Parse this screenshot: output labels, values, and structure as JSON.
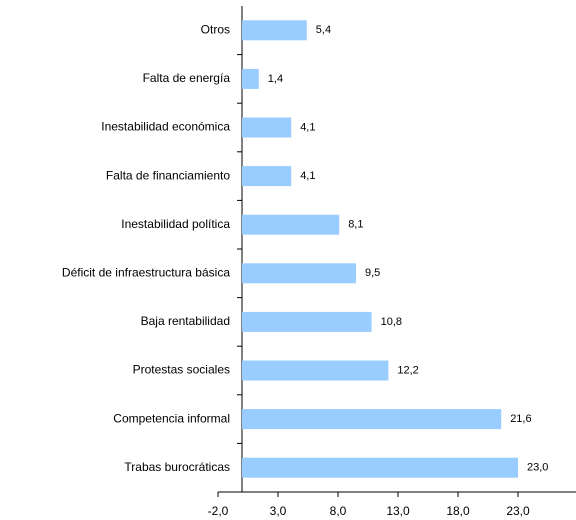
{
  "chart_data": {
    "type": "barh",
    "categories": [
      "Otros",
      "Falta de energía",
      "Inestabilidad económica",
      "Falta de financiamiento",
      "Inestabilidad política",
      "Déficit de infraestructura básica",
      "Baja rentabilidad",
      "Protestas sociales",
      "Competencia informal",
      "Trabas burocráticas"
    ],
    "values": [
      5.4,
      1.4,
      4.1,
      4.1,
      8.1,
      9.5,
      10.8,
      12.2,
      21.6,
      23.0
    ],
    "value_labels": [
      "5,4",
      "1,4",
      "4,1",
      "4,1",
      "8,1",
      "9,5",
      "10,8",
      "12,2",
      "21,6",
      "23,0"
    ],
    "color": "#99ccff",
    "xlim": [
      -2,
      28
    ],
    "xticks": [
      {
        "value": -2,
        "label": "-2,0"
      },
      {
        "value": 3,
        "label": "3,0"
      },
      {
        "value": 8,
        "label": "8,0"
      },
      {
        "value": 13,
        "label": "13,0"
      },
      {
        "value": 18,
        "label": "18,0"
      },
      {
        "value": 23,
        "label": "23,0"
      }
    ]
  }
}
